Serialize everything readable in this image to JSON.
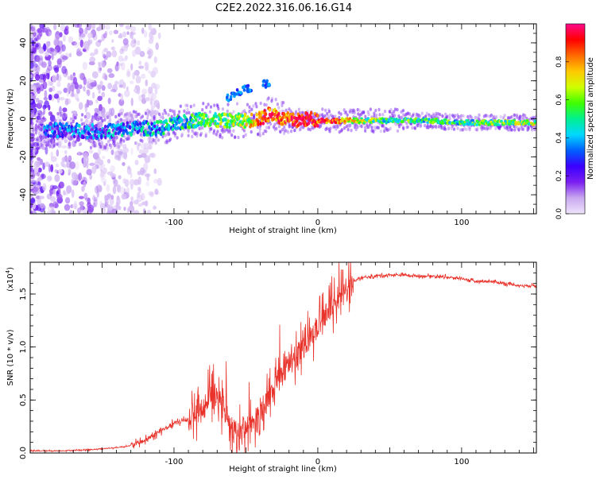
{
  "title": "C2E2.2022.316.06.16.G14",
  "chart_data": [
    {
      "type": "heatmap",
      "xlabel": "Height of straight line (km)",
      "ylabel": "Frequency (Hz)",
      "xlim": [
        -200,
        152
      ],
      "ylim": [
        -50,
        50
      ],
      "x_ticks": [
        -100,
        0,
        100
      ],
      "y_ticks": [
        -40,
        -20,
        0,
        20,
        40
      ],
      "grid": false,
      "colorbar": {
        "label": "Normalized spectral amplitude",
        "range": [
          0,
          1
        ],
        "ticks": [
          "0.0",
          "0.2",
          "0.4",
          "0.6",
          "0.8"
        ],
        "colors": [
          "#f0e4fb",
          "#c8a8f0",
          "#7b1ff0",
          "#3a00ff",
          "#0060ff",
          "#00d8ff",
          "#00f090",
          "#40ff00",
          "#d0ff00",
          "#ffc800",
          "#ff6a00",
          "#ff0000",
          "#ff0a8c"
        ]
      },
      "ridge": {
        "description": "frequency of maximum spectral amplitude versus height",
        "x": [
          -190,
          -170,
          -150,
          -130,
          -110,
          -95,
          -80,
          -70,
          -60,
          -50,
          -40,
          -32,
          -25,
          -15,
          -5,
          5,
          20,
          40,
          60,
          80,
          100,
          120,
          152
        ],
        "frequency": [
          -6,
          -6,
          -7,
          -5,
          -5,
          -2,
          0,
          -1,
          -1,
          -1,
          0,
          3,
          0,
          -1,
          0,
          -1,
          -1,
          -1,
          -1,
          -1,
          -2,
          -2,
          -2
        ],
        "amplitude": [
          0.25,
          0.3,
          0.3,
          0.35,
          0.4,
          0.45,
          0.5,
          0.55,
          0.55,
          0.6,
          0.85,
          0.9,
          0.85,
          0.95,
          0.95,
          0.9,
          0.7,
          0.55,
          0.5,
          0.5,
          0.5,
          0.55,
          0.6
        ]
      }
    },
    {
      "type": "line",
      "xlabel": "Height of straight line (km)",
      "ylabel": "SNR (10 * v/v)",
      "y_multiplier": "(x10",
      "y_multiplier_exp": "4",
      "y_multiplier_close": ")",
      "xlim": [
        -200,
        152
      ],
      "ylim": [
        0,
        1.8
      ],
      "x_ticks": [
        -100,
        0,
        100
      ],
      "y_ticks": [
        "0.0",
        "0.5",
        "1.0",
        "1.5"
      ],
      "grid": false,
      "series": [
        {
          "color": "#e8322a",
          "x": [
            -200,
            -180,
            -160,
            -140,
            -130,
            -120,
            -110,
            -100,
            -90,
            -80,
            -75,
            -70,
            -65,
            -60,
            -55,
            -50,
            -45,
            -40,
            -35,
            -30,
            -25,
            -20,
            -15,
            -10,
            -5,
            0,
            5,
            10,
            15,
            20,
            25,
            30,
            40,
            50,
            60,
            70,
            80,
            90,
            95,
            100,
            105,
            110,
            120,
            130,
            140,
            152
          ],
          "y": [
            0.02,
            0.02,
            0.03,
            0.05,
            0.07,
            0.12,
            0.2,
            0.28,
            0.32,
            0.4,
            0.55,
            0.5,
            0.42,
            0.2,
            0.18,
            0.25,
            0.3,
            0.35,
            0.5,
            0.6,
            0.75,
            0.85,
            0.9,
            1.0,
            1.1,
            1.2,
            1.3,
            1.4,
            1.45,
            1.55,
            1.62,
            1.65,
            1.67,
            1.68,
            1.68,
            1.67,
            1.67,
            1.66,
            1.65,
            1.65,
            1.63,
            1.62,
            1.62,
            1.6,
            1.58,
            1.58
          ]
        }
      ]
    }
  ]
}
